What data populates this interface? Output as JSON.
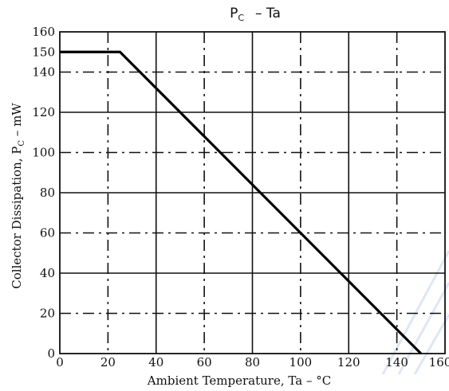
{
  "chart_data": {
    "type": "line",
    "title": {
      "main_left": "P",
      "sub": "C",
      "main_right": "–   Ta"
    },
    "xlabel": "Ambient Temperature, Ta – °C",
    "ylabel": "Collector Dissipation, P",
    "ylabel_sub": "C",
    "ylabel_unit": " – mW",
    "xlim": [
      0,
      160
    ],
    "ylim": [
      0,
      160
    ],
    "x_ticks": [
      "0",
      "20",
      "40",
      "60",
      "80",
      "100",
      "120",
      "140",
      "160"
    ],
    "y_ticks": [
      "0",
      "20",
      "40",
      "60",
      "80",
      "100",
      "120",
      "140",
      "150",
      "160"
    ],
    "grid": true,
    "series": [
      {
        "x": [
          0,
          25,
          150
        ],
        "y": [
          150,
          150,
          0
        ]
      }
    ]
  }
}
